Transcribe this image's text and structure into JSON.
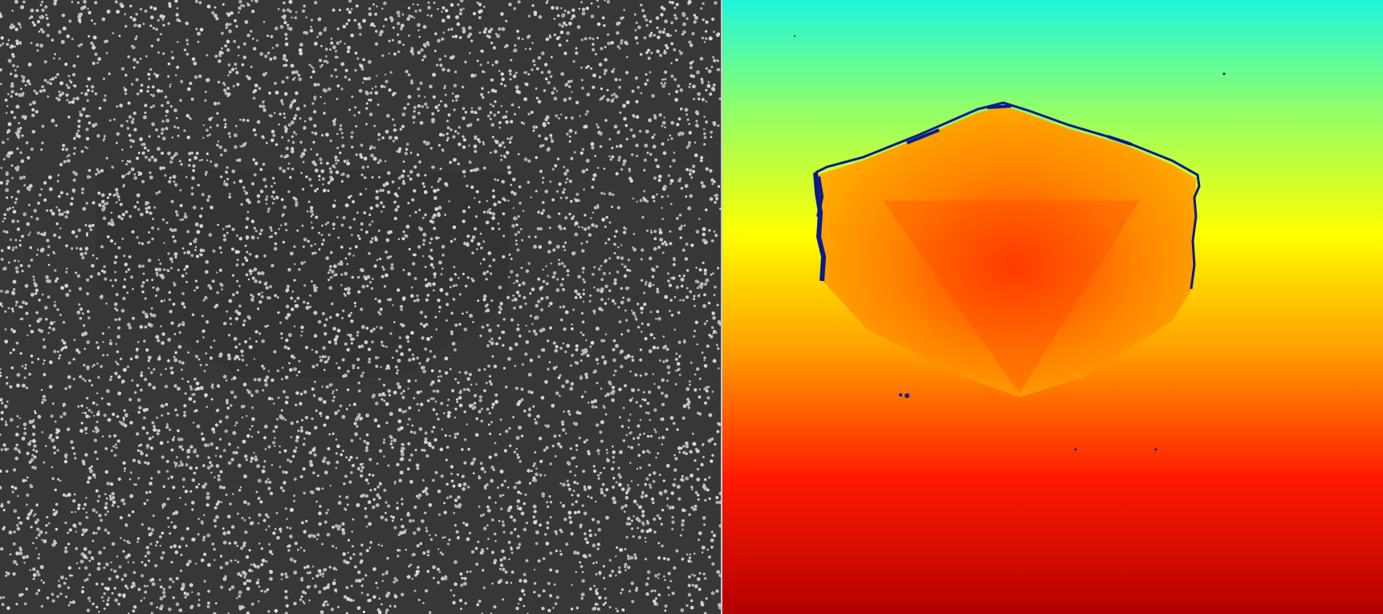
{
  "panels": {
    "left": {
      "kind": "speckle-pattern",
      "colors": {
        "background": "#373737",
        "dot": "#bdbdbd",
        "shadow": "#2e2e2e"
      }
    },
    "right": {
      "kind": "depth-map",
      "colormap": "jet",
      "colors": {
        "top": "#1ef5dc",
        "upper": "#8cff6e",
        "middle": "#ffff00",
        "lower": "#ff9900",
        "bottom": "#b40000",
        "object_core": "#ff3300",
        "object_edge": "#ffb000",
        "invalid": "#0a1a8a"
      }
    }
  }
}
